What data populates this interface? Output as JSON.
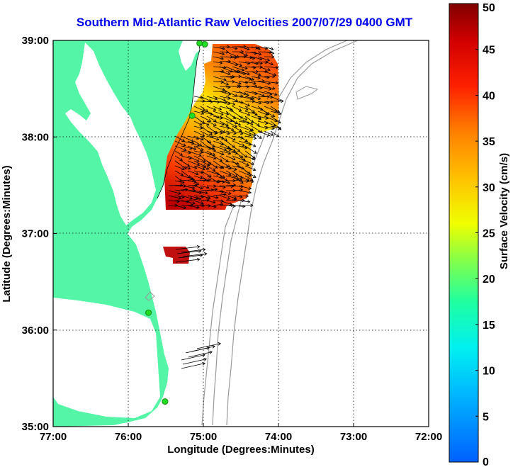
{
  "title": "Southern Mid-Atlantic Raw Velocities 2007/07/29 0400 GMT",
  "map": {
    "xlabel": "Longitude (Degrees:Minutes)",
    "ylabel": "Latitude (Degrees:Minutes)",
    "lon_range": [
      -77,
      -72
    ],
    "lat_range": [
      35,
      39
    ],
    "lon_ticks": [
      {
        "value": -77,
        "label": "77:00"
      },
      {
        "value": -76,
        "label": "76:00"
      },
      {
        "value": -75,
        "label": "75:00"
      },
      {
        "value": -74,
        "label": "74:00"
      },
      {
        "value": -73,
        "label": "73:00"
      },
      {
        "value": -72,
        "label": "72:00"
      }
    ],
    "lat_ticks": [
      {
        "value": 39,
        "label": "39:00"
      },
      {
        "value": 38,
        "label": "38:00"
      },
      {
        "value": 37,
        "label": "37:00"
      },
      {
        "value": 36,
        "label": "36:00"
      },
      {
        "value": 35,
        "label": "35:00"
      }
    ],
    "land_color": "#55f5a8",
    "grid": "dotted",
    "stations": [
      {
        "lon": -75.05,
        "lat": 38.97
      },
      {
        "lon": -74.98,
        "lat": 38.96
      },
      {
        "lon": -75.15,
        "lat": 38.22
      },
      {
        "lon": -75.73,
        "lat": 36.18
      },
      {
        "lon": -75.51,
        "lat": 35.26
      }
    ]
  },
  "colorbar": {
    "label": "Surface Velocity (cm/s)",
    "min": 0,
    "max": 50,
    "ticks": [
      "0",
      "5",
      "10",
      "15",
      "20",
      "25",
      "30",
      "35",
      "40",
      "45",
      "50"
    ]
  }
}
